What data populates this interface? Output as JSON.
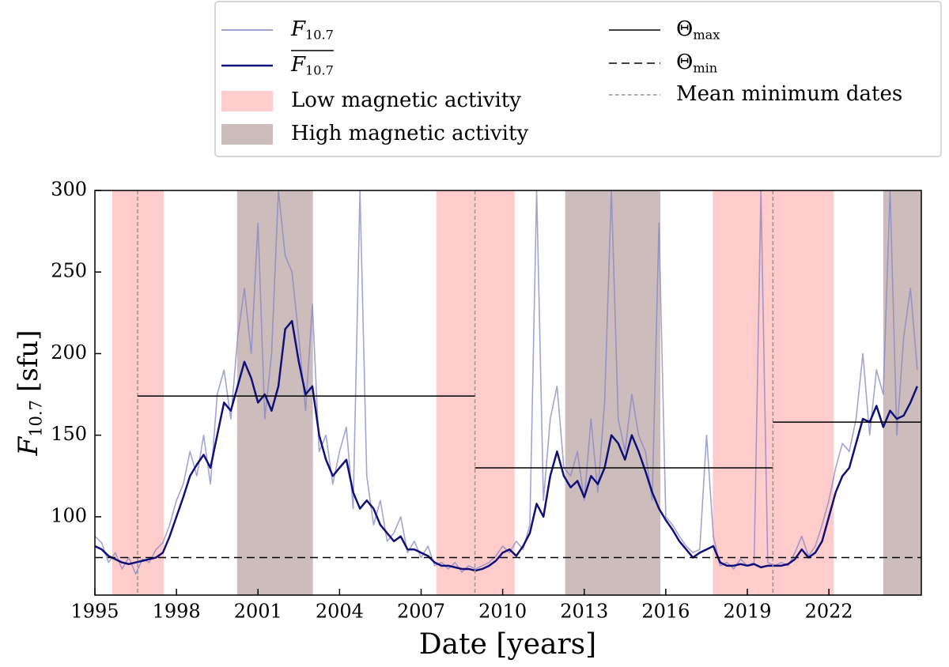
{
  "chart_data": {
    "type": "line",
    "xlabel": "Date [years]",
    "ylabel": {
      "main": "F",
      "sub": "10.7",
      "unit": "[sfu]"
    },
    "xlim": [
      1995,
      2025.4
    ],
    "ylim": [
      52,
      300
    ],
    "xticks": [
      1995,
      1998,
      2001,
      2004,
      2007,
      2010,
      2013,
      2016,
      2019,
      2022
    ],
    "yticks": [
      100,
      150,
      200,
      250,
      300
    ],
    "x": [
      1995,
      1995.25,
      1995.5,
      1995.75,
      1996,
      1996.25,
      1996.5,
      1996.75,
      1997,
      1997.25,
      1997.5,
      1997.75,
      1998,
      1998.25,
      1998.5,
      1998.75,
      1999,
      1999.25,
      1999.5,
      1999.75,
      2000,
      2000.25,
      2000.5,
      2000.75,
      2001,
      2001.25,
      2001.5,
      2001.75,
      2002,
      2002.25,
      2002.5,
      2002.75,
      2003,
      2003.25,
      2003.5,
      2003.75,
      2004,
      2004.25,
      2004.5,
      2004.75,
      2005,
      2005.25,
      2005.5,
      2005.75,
      2006,
      2006.25,
      2006.5,
      2006.75,
      2007,
      2007.25,
      2007.5,
      2007.75,
      2008,
      2008.25,
      2008.5,
      2008.75,
      2009,
      2009.25,
      2009.5,
      2009.75,
      2010,
      2010.25,
      2010.5,
      2010.75,
      2011,
      2011.25,
      2011.5,
      2011.75,
      2012,
      2012.25,
      2012.5,
      2012.75,
      2013,
      2013.25,
      2013.5,
      2013.75,
      2014,
      2014.25,
      2014.5,
      2014.75,
      2015,
      2015.25,
      2015.5,
      2015.75,
      2016,
      2016.25,
      2016.5,
      2016.75,
      2017,
      2017.25,
      2017.5,
      2017.75,
      2018,
      2018.25,
      2018.5,
      2018.75,
      2019,
      2019.25,
      2019.5,
      2019.75,
      2020,
      2020.25,
      2020.5,
      2020.75,
      2021,
      2021.25,
      2021.5,
      2021.75,
      2022,
      2022.25,
      2022.5,
      2022.75,
      2023,
      2023.25,
      2023.5,
      2023.75,
      2024,
      2024.25,
      2024.5,
      2024.75,
      2025,
      2025.25
    ],
    "series": [
      {
        "name": {
          "main": "F",
          "sub": "10.7"
        },
        "color": "#8585c4",
        "opacity": 0.75,
        "values": [
          88,
          84,
          72,
          78,
          68,
          75,
          65,
          74,
          72,
          80,
          84,
          95,
          110,
          120,
          140,
          125,
          150,
          120,
          175,
          190,
          160,
          210,
          240,
          200,
          280,
          160,
          200,
          300,
          260,
          250,
          210,
          165,
          230,
          140,
          150,
          120,
          140,
          155,
          105,
          300,
          125,
          95,
          110,
          85,
          90,
          100,
          78,
          85,
          75,
          82,
          70,
          72,
          68,
          72,
          66,
          70,
          68,
          70,
          72,
          76,
          82,
          78,
          85,
          80,
          95,
          300,
          110,
          160,
          180,
          130,
          125,
          140,
          110,
          160,
          115,
          170,
          300,
          160,
          140,
          175,
          150,
          140,
          110,
          280,
          100,
          95,
          88,
          82,
          78,
          80,
          150,
          88,
          70,
          72,
          68,
          74,
          70,
          72,
          300,
          72,
          70,
          72,
          70,
          78,
          88,
          76,
          82,
          95,
          110,
          130,
          145,
          140,
          160,
          200,
          150,
          190,
          175,
          300,
          150,
          210,
          240,
          190
        ]
      },
      {
        "name": {
          "main": "F",
          "sub": "10.7",
          "overline": true
        },
        "color": "#10107a",
        "opacity": 1,
        "values": [
          82,
          80,
          76,
          74,
          72,
          71,
          72,
          73,
          74,
          75,
          78,
          88,
          100,
          112,
          125,
          132,
          138,
          130,
          150,
          170,
          165,
          180,
          195,
          185,
          170,
          175,
          165,
          180,
          215,
          220,
          195,
          175,
          180,
          150,
          135,
          125,
          130,
          135,
          115,
          105,
          110,
          105,
          95,
          90,
          85,
          88,
          80,
          80,
          78,
          76,
          72,
          70,
          70,
          69,
          68,
          68,
          67,
          68,
          70,
          73,
          78,
          80,
          76,
          82,
          90,
          108,
          100,
          125,
          140,
          125,
          118,
          122,
          112,
          125,
          120,
          130,
          150,
          145,
          135,
          150,
          140,
          128,
          115,
          105,
          98,
          92,
          85,
          80,
          75,
          78,
          80,
          82,
          72,
          70,
          70,
          71,
          70,
          71,
          69,
          70,
          70,
          70,
          71,
          74,
          80,
          75,
          78,
          85,
          100,
          115,
          125,
          130,
          145,
          160,
          158,
          168,
          155,
          165,
          160,
          162,
          170,
          180
        ]
      }
    ],
    "theta_max": {
      "name": {
        "main": "Θ",
        "sub": "max"
      },
      "color": "#000000",
      "segments": [
        {
          "start": 1996.57,
          "end": 2008.98,
          "value": 174
        },
        {
          "start": 2008.98,
          "end": 2019.94,
          "value": 130
        },
        {
          "start": 2019.94,
          "end": 2025.4,
          "value": 158
        }
      ]
    },
    "theta_min": {
      "name": {
        "main": "Θ",
        "sub": "min"
      },
      "color": "#000000",
      "value": 75
    },
    "mean_minimum_dates": {
      "name": "Mean minimum dates",
      "color": "#999999",
      "values": [
        1996.57,
        2008.98,
        2019.94
      ]
    },
    "low_activity": {
      "name": "Low magnetic activity",
      "color": "#ffcccc",
      "spans": [
        [
          1995.64,
          1997.53
        ],
        [
          2007.56,
          2010.44
        ],
        [
          2017.73,
          2022.18
        ]
      ]
    },
    "high_activity": {
      "name": "High magnetic activity",
      "color": "#ccbcbc",
      "spans": [
        [
          2000.23,
          2003.02
        ],
        [
          2012.3,
          2015.8
        ],
        [
          2024.0,
          2025.4
        ]
      ]
    }
  }
}
